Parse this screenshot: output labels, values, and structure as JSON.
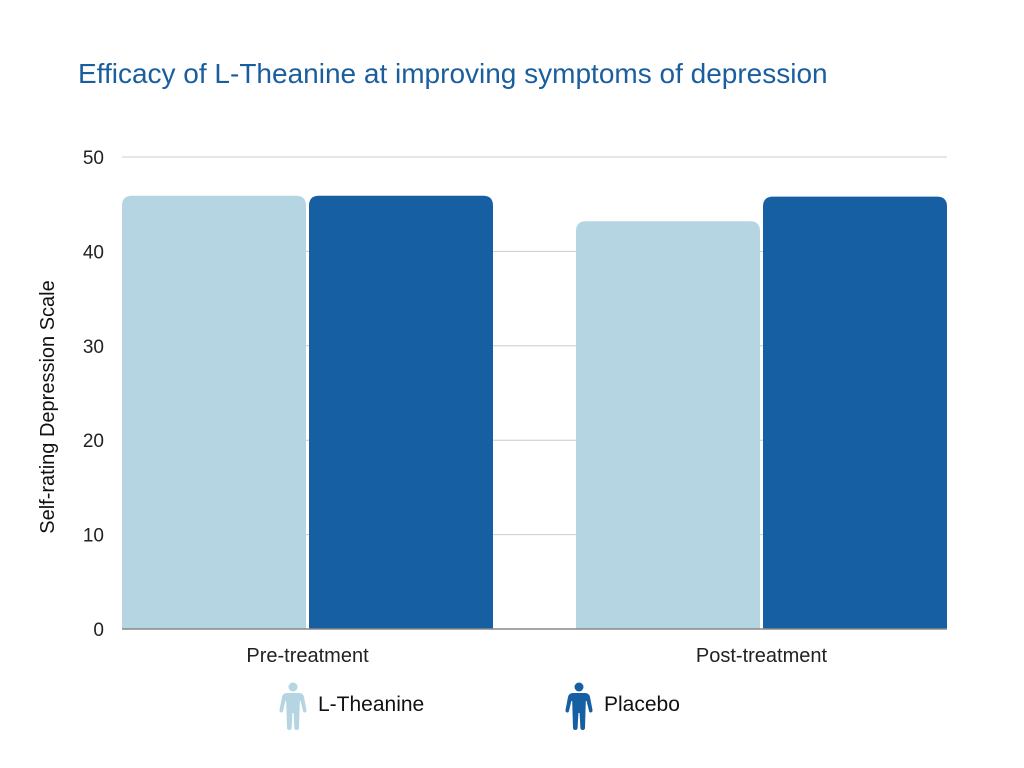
{
  "chart_data": {
    "type": "bar",
    "title": "Efficacy of L-Theanine at improving symptoms of depression",
    "xlabel": "",
    "ylabel": "Self-rating Depression Scale",
    "categories": [
      "Pre-treatment",
      "Post-treatment"
    ],
    "series": [
      {
        "name": "L-Theanine",
        "color": "#b4d5e1",
        "values": [
          45.9,
          43.2
        ]
      },
      {
        "name": "Placebo",
        "color": "#175fa3",
        "values": [
          45.9,
          45.8
        ]
      }
    ],
    "ylim": [
      0,
      50
    ],
    "yticks": [
      0,
      10,
      20,
      30,
      40,
      50
    ],
    "grid": true,
    "legend": "bottom-center",
    "legend_icon": "person-icon"
  }
}
